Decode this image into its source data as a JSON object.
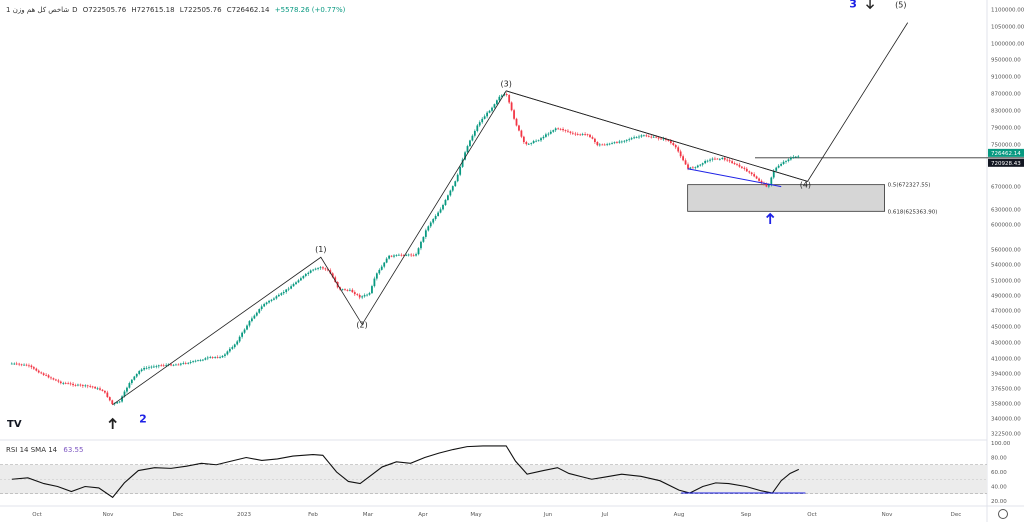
{
  "header": {
    "symbol": "شاخص کل هم وزن",
    "interval": "1D",
    "open": "O722505.76",
    "high": "H727615.18",
    "low": "L722505.76",
    "close": "C726462.14",
    "change": "+5578.26 (+0.77%)"
  },
  "rsi_header": {
    "title": "RSI 14 SMA 14",
    "value": "63.55"
  },
  "colors": {
    "up": "#089981",
    "down": "#f23645",
    "wick": "#787b86",
    "blue": "#1e22e6",
    "line": "#222222",
    "fib_zone": "#d6d6d6"
  },
  "chart_data": {
    "type": "candlestick",
    "title": "",
    "price_axis": {
      "ticks": [
        322500,
        340000,
        358000,
        376500,
        394000,
        410000,
        430000,
        450000,
        470000,
        490000,
        510000,
        540000,
        560000,
        600000,
        630000,
        670000,
        710000,
        750000,
        790000,
        830000,
        870000,
        910000,
        950000,
        1000000,
        1050000,
        1100000
      ],
      "tick_labels": [
        "322500.00",
        "340000.00",
        "358000.00",
        "376500.00",
        "394000.00",
        "410000.00",
        "430000.00",
        "450000.00",
        "470000.00",
        "490000.00",
        "510000.00",
        "540000.00",
        "560000.00",
        "600000.00",
        "630000.00",
        "670000.00",
        "710000.00",
        "750000.00",
        "790000.00",
        "830000.00",
        "870000.00",
        "910000.00",
        "950000.00",
        "1000000.00",
        "1050000.00",
        "1100000.00"
      ],
      "current_price_label": "726462.14",
      "horizontal_level_label": "720928.43"
    },
    "time_axis": {
      "labels": [
        "Oct",
        "Nov",
        "Dec",
        "2023",
        "Feb",
        "Mar",
        "Apr",
        "May",
        "Jun",
        "Jul",
        "Aug",
        "Sep",
        "Oct",
        "Nov",
        "Dec"
      ]
    },
    "price_path": [
      [
        "2022-09-20",
        404000
      ],
      [
        "2022-09-27",
        402000
      ],
      [
        "2022-10-04",
        392000
      ],
      [
        "2022-10-11",
        383000
      ],
      [
        "2022-10-18",
        380000
      ],
      [
        "2022-10-25",
        378000
      ],
      [
        "2022-10-30",
        373000
      ],
      [
        "2022-11-03",
        356000
      ],
      [
        "2022-11-06",
        360000
      ],
      [
        "2022-11-10",
        382000
      ],
      [
        "2022-11-15",
        398000
      ],
      [
        "2022-11-22",
        402000
      ],
      [
        "2022-11-30",
        403000
      ],
      [
        "2022-12-08",
        406000
      ],
      [
        "2022-12-15",
        410000
      ],
      [
        "2022-12-22",
        412000
      ],
      [
        "2022-12-28",
        428000
      ],
      [
        "2023-01-04",
        458000
      ],
      [
        "2023-01-10",
        478000
      ],
      [
        "2023-01-17",
        490000
      ],
      [
        "2023-01-24",
        506000
      ],
      [
        "2023-01-31",
        527000
      ],
      [
        "2023-02-05",
        534000
      ],
      [
        "2023-02-09",
        527000
      ],
      [
        "2023-02-14",
        498000
      ],
      [
        "2023-02-20",
        496000
      ],
      [
        "2023-02-25",
        487000
      ],
      [
        "2023-03-02",
        492000
      ],
      [
        "2023-03-06",
        522000
      ],
      [
        "2023-03-12",
        550000
      ],
      [
        "2023-03-20",
        552000
      ],
      [
        "2023-03-28",
        552000
      ],
      [
        "2023-04-03",
        592000
      ],
      [
        "2023-04-12",
        635000
      ],
      [
        "2023-04-20",
        682000
      ],
      [
        "2023-04-26",
        745000
      ],
      [
        "2023-05-02",
        798000
      ],
      [
        "2023-05-08",
        837000
      ],
      [
        "2023-05-11",
        862000
      ],
      [
        "2023-05-14",
        868000
      ],
      [
        "2023-05-18",
        800000
      ],
      [
        "2023-05-22",
        748000
      ],
      [
        "2023-05-28",
        760000
      ],
      [
        "2023-06-05",
        787000
      ],
      [
        "2023-06-10",
        782000
      ],
      [
        "2023-06-15",
        772000
      ],
      [
        "2023-06-22",
        773000
      ],
      [
        "2023-06-27",
        748000
      ],
      [
        "2023-07-03",
        750000
      ],
      [
        "2023-07-10",
        760000
      ],
      [
        "2023-07-17",
        770000
      ],
      [
        "2023-07-22",
        765000
      ],
      [
        "2023-07-27",
        760000
      ],
      [
        "2023-07-31",
        740000
      ],
      [
        "2023-08-05",
        700000
      ],
      [
        "2023-08-10",
        705000
      ],
      [
        "2023-08-15",
        718000
      ],
      [
        "2023-08-21",
        720000
      ],
      [
        "2023-08-27",
        708000
      ],
      [
        "2023-09-02",
        695000
      ],
      [
        "2023-09-06",
        682000
      ],
      [
        "2023-09-11",
        668000
      ],
      [
        "2023-09-14",
        700000
      ],
      [
        "2023-09-18",
        712000
      ],
      [
        "2023-09-21",
        720000
      ],
      [
        "2023-09-25",
        725000
      ]
    ],
    "wave_labels": [
      {
        "text": "(1)",
        "date": "2023-02-05",
        "price": 556000
      },
      {
        "text": "(2)",
        "date": "2023-02-26",
        "price": 448000
      },
      {
        "text": "(3)",
        "date": "2023-05-14",
        "price": 885000
      },
      {
        "text": "(4)",
        "date": "2023-09-28",
        "price": 667000
      },
      {
        "text": "(5)",
        "date": "2023-11-07",
        "price": 1105000
      }
    ],
    "degree_labels": [
      {
        "text": "2",
        "date": "2022-11-16",
        "price": 335000
      },
      {
        "text": "3",
        "date": "2023-10-18",
        "price": 1105000
      }
    ],
    "wave_path": [
      [
        "2022-11-03",
        356000
      ],
      [
        "2023-02-05",
        549000
      ],
      [
        "2023-02-26",
        452000
      ],
      [
        "2023-05-14",
        875000
      ],
      [
        "2023-09-29",
        678000
      ],
      [
        "2023-11-10",
        1060000
      ]
    ],
    "trendlines": [
      {
        "from": [
          "2023-05-14",
          875000
        ],
        "to": [
          "2023-09-29",
          678000
        ],
        "color": "#222222"
      },
      {
        "from": [
          "2023-08-05",
          700000
        ],
        "to": [
          "2023-09-17",
          669000
        ],
        "color": "#1e22e6"
      }
    ],
    "horizontal_level": 720928.43,
    "fib_zone": {
      "from": "2023-08-05",
      "to": "2023-10-31",
      "levels": [
        {
          "ratio_label": "0.5(672327.55)",
          "price": 672327.55
        },
        {
          "ratio_label": "0.618(625363.90)",
          "price": 625363.9
        }
      ]
    },
    "arrows": [
      {
        "dir": "up",
        "date": "2022-11-03",
        "price": 333000,
        "color": "#222222"
      },
      {
        "dir": "up",
        "date": "2023-09-12",
        "price": 610000,
        "color": "#1e22e6"
      },
      {
        "dir": "down",
        "date": "2023-10-25",
        "price": 1105000,
        "color": "#222222"
      }
    ],
    "rsi": {
      "title": "RSI 14 SMA 14",
      "value": 63.55,
      "ylim": [
        20,
        100
      ],
      "axis_ticks": [
        20,
        40,
        60,
        80,
        100
      ],
      "axis_labels": [
        "20.00",
        "40.00",
        "60.00",
        "80.00",
        "100.00"
      ],
      "band": [
        30,
        70
      ],
      "path": [
        [
          "2022-09-20",
          50
        ],
        [
          "2022-09-27",
          52
        ],
        [
          "2022-10-04",
          44
        ],
        [
          "2022-10-10",
          40
        ],
        [
          "2022-10-16",
          33
        ],
        [
          "2022-10-22",
          40
        ],
        [
          "2022-10-28",
          38
        ],
        [
          "2022-11-03",
          25
        ],
        [
          "2022-11-08",
          45
        ],
        [
          "2022-11-14",
          62
        ],
        [
          "2022-11-21",
          66
        ],
        [
          "2022-11-28",
          65
        ],
        [
          "2022-12-05",
          68
        ],
        [
          "2022-12-12",
          72
        ],
        [
          "2022-12-19",
          70
        ],
        [
          "2022-12-26",
          75
        ],
        [
          "2023-01-02",
          80
        ],
        [
          "2023-01-09",
          76
        ],
        [
          "2023-01-16",
          78
        ],
        [
          "2023-01-23",
          82
        ],
        [
          "2023-02-01",
          84
        ],
        [
          "2023-02-06",
          83
        ],
        [
          "2023-02-13",
          60
        ],
        [
          "2023-02-19",
          47
        ],
        [
          "2023-02-25",
          44
        ],
        [
          "2023-03-02",
          54
        ],
        [
          "2023-03-09",
          67
        ],
        [
          "2023-03-17",
          74
        ],
        [
          "2023-03-25",
          72
        ],
        [
          "2023-04-02",
          80
        ],
        [
          "2023-04-10",
          86
        ],
        [
          "2023-04-18",
          91
        ],
        [
          "2023-04-26",
          95
        ],
        [
          "2023-05-04",
          96
        ],
        [
          "2023-05-14",
          96
        ],
        [
          "2023-05-18",
          75
        ],
        [
          "2023-05-23",
          57
        ],
        [
          "2023-05-30",
          62
        ],
        [
          "2023-06-06",
          66
        ],
        [
          "2023-06-12",
          58
        ],
        [
          "2023-06-18",
          54
        ],
        [
          "2023-06-24",
          50
        ],
        [
          "2023-07-01",
          53
        ],
        [
          "2023-07-08",
          57
        ],
        [
          "2023-07-16",
          54
        ],
        [
          "2023-07-24",
          48
        ],
        [
          "2023-08-01",
          35
        ],
        [
          "2023-08-06",
          31
        ],
        [
          "2023-08-12",
          40
        ],
        [
          "2023-08-18",
          45
        ],
        [
          "2023-08-24",
          44
        ],
        [
          "2023-09-01",
          40
        ],
        [
          "2023-09-08",
          34
        ],
        [
          "2023-09-13",
          31
        ],
        [
          "2023-09-17",
          48
        ],
        [
          "2023-09-21",
          58
        ],
        [
          "2023-09-25",
          63.55
        ]
      ],
      "support_line": {
        "from": [
          "2023-08-02",
          31
        ],
        "to": [
          "2023-09-28",
          31
        ],
        "color": "#1e22e6"
      }
    }
  }
}
